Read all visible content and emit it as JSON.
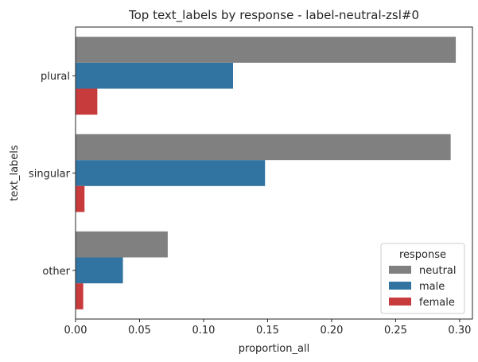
{
  "chart_data": {
    "type": "bar",
    "orientation": "horizontal",
    "title": "Top  text_labels by response - label-neutral-zsl#0",
    "xlabel": "proportion_all",
    "ylabel": "text_labels",
    "categories": [
      "plural",
      "singular",
      "other"
    ],
    "xlim": [
      0,
      0.31
    ],
    "xticks": [
      0.0,
      0.05,
      0.1,
      0.15,
      0.2,
      0.25,
      0.3
    ],
    "xtick_labels": [
      "0.00",
      "0.05",
      "0.10",
      "0.15",
      "0.20",
      "0.25",
      "0.30"
    ],
    "grid": false,
    "series": [
      {
        "name": "neutral",
        "color": "#808080",
        "values": [
          0.297,
          0.293,
          0.072
        ]
      },
      {
        "name": "male",
        "color": "#3274a1",
        "values": [
          0.123,
          0.148,
          0.037
        ]
      },
      {
        "name": "female",
        "color": "#c83b3d",
        "values": [
          0.017,
          0.007,
          0.006
        ]
      }
    ],
    "legend": {
      "title": "response",
      "placement": "lower-right"
    }
  }
}
